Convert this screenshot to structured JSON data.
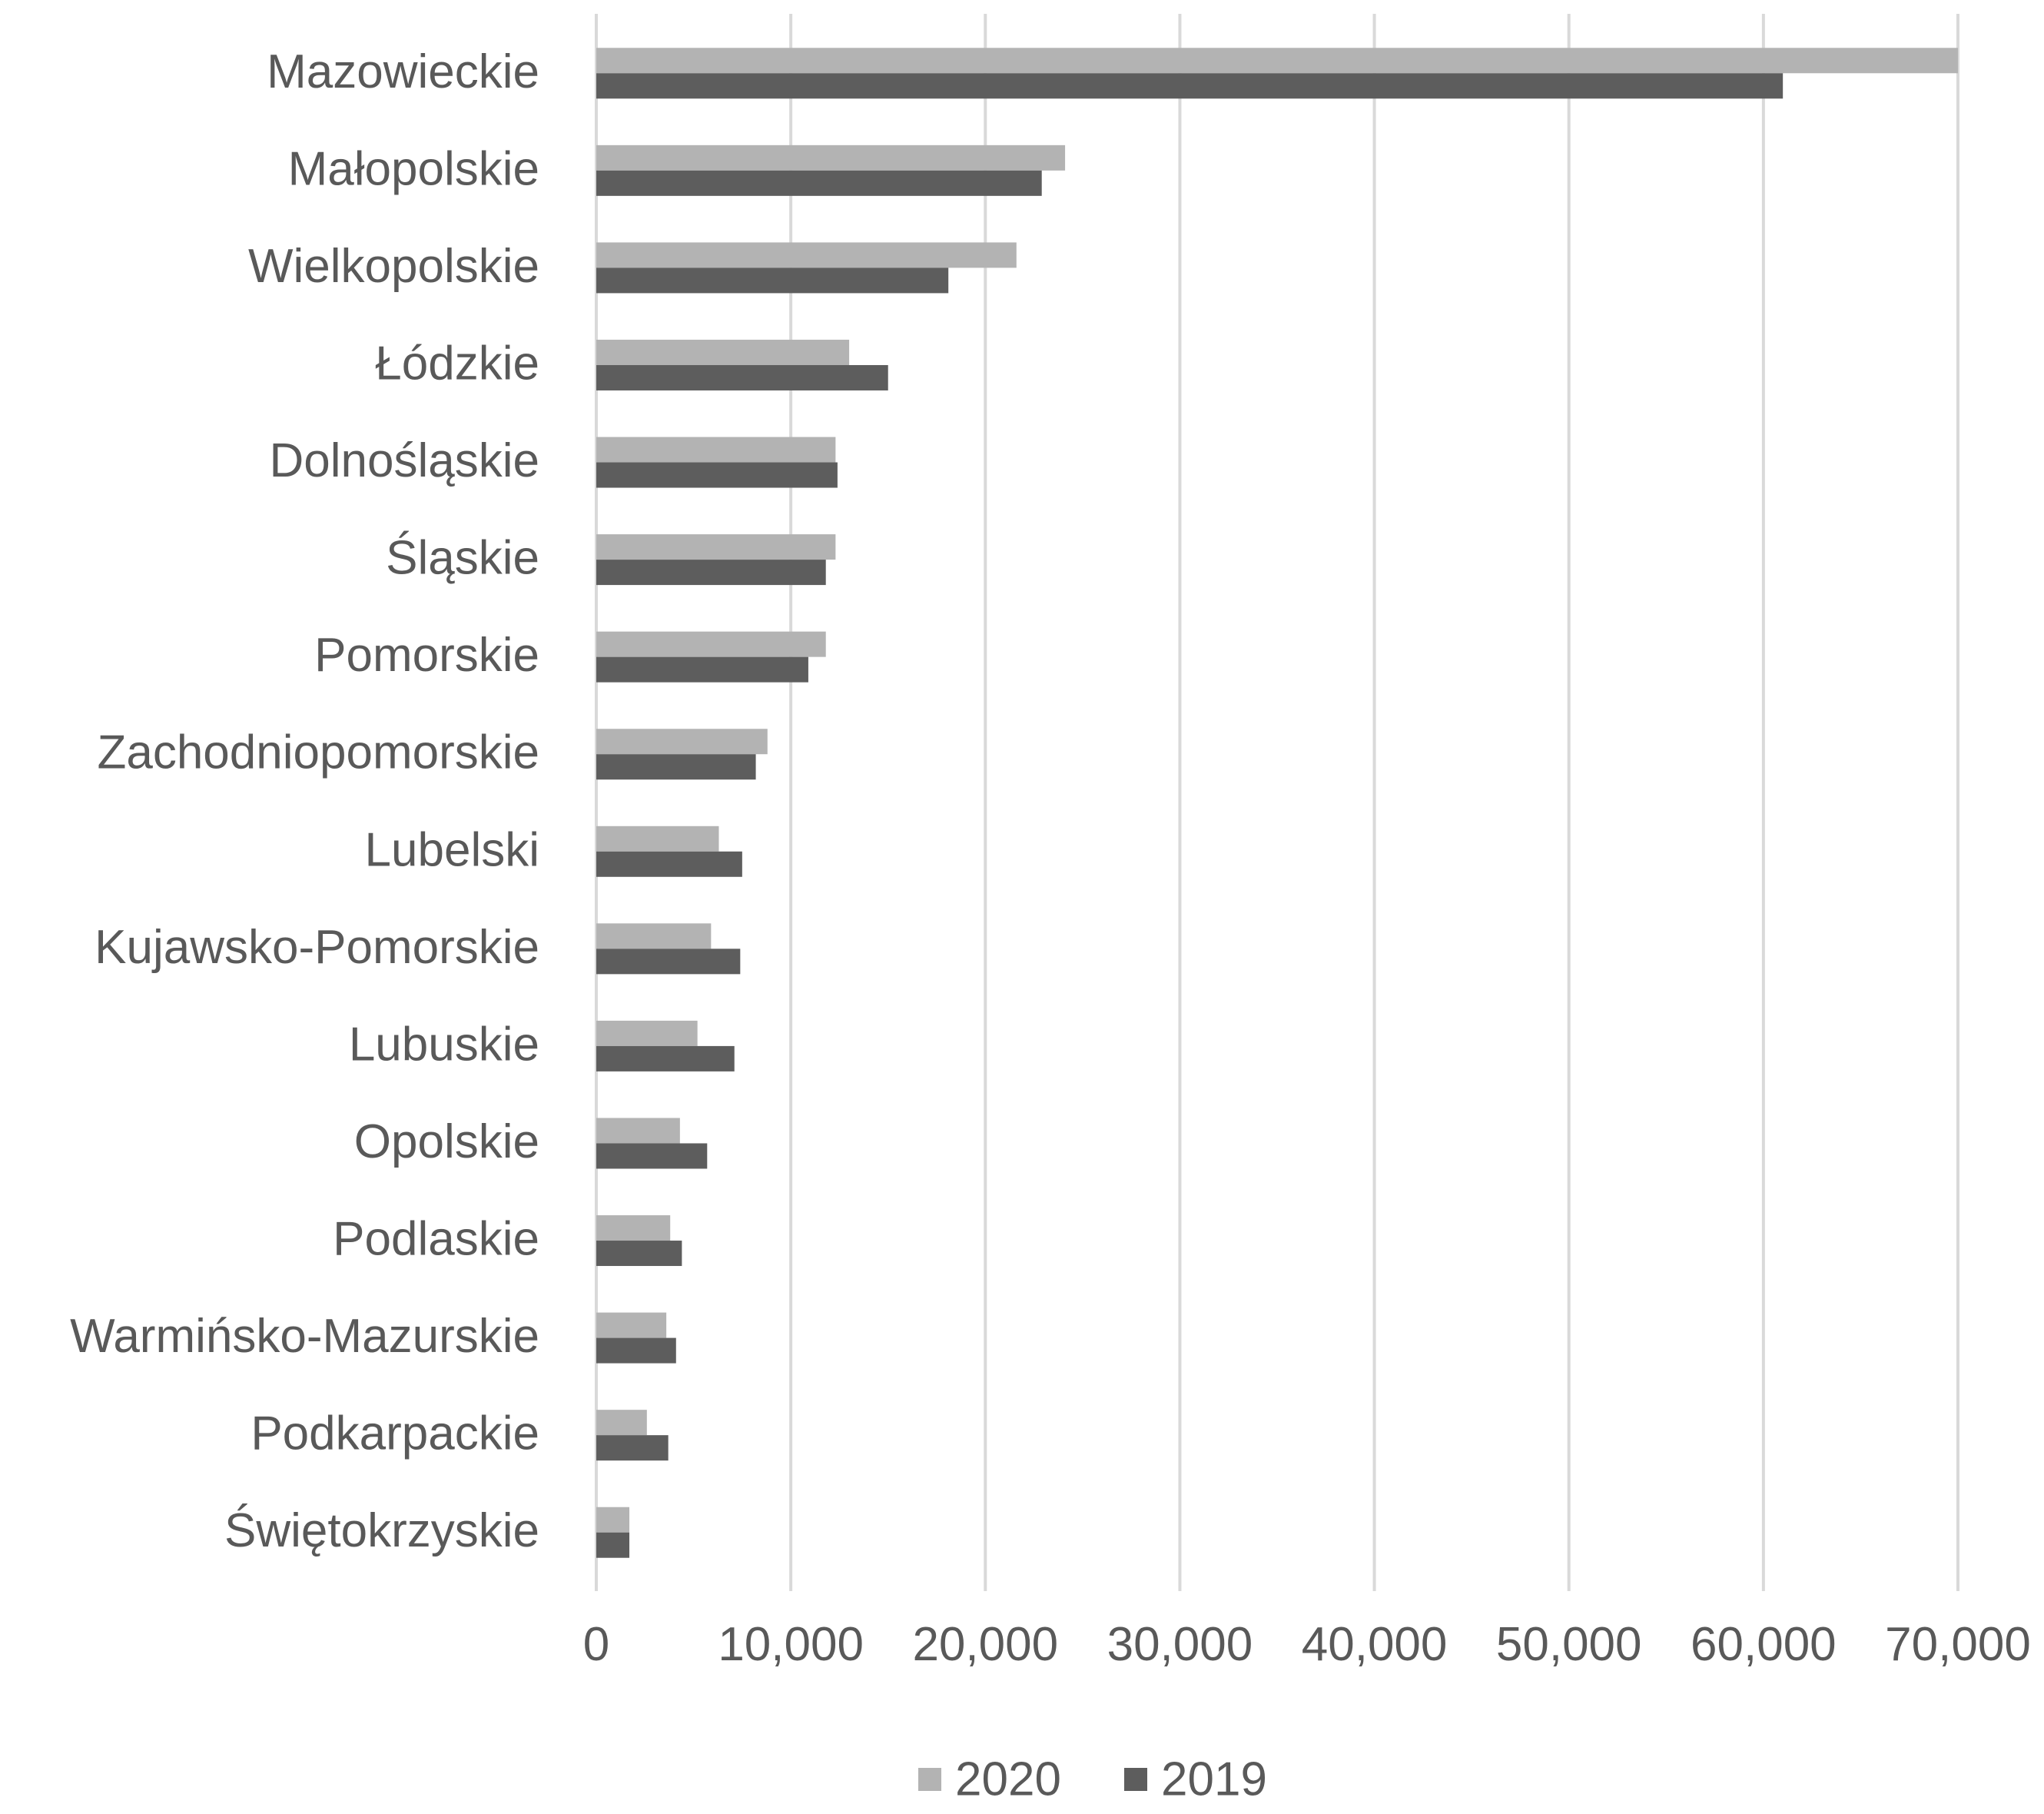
{
  "chart_data": {
    "type": "bar",
    "orientation": "horizontal",
    "categories": [
      "Mazowieckie",
      "Małopolskie",
      "Wielkopolskie",
      "Łódzkie",
      "Dolnośląskie",
      "Śląskie",
      "Pomorskie",
      "Zachodniopomorskie",
      "Lubelski",
      "Kujawsko-Pomorskie",
      "Lubuskie",
      "Opolskie",
      "Podlaskie",
      "Warmińsko-Mazurskie",
      "Podkarpackie",
      "Świętokrzyskie"
    ],
    "series": [
      {
        "name": "2020",
        "color": "#b3b3b3",
        "values": [
          70000,
          24100,
          21600,
          13000,
          12300,
          12300,
          11800,
          8800,
          6300,
          5900,
          5200,
          4300,
          3800,
          3600,
          2600,
          1700
        ]
      },
      {
        "name": "2019",
        "color": "#5d5d5d",
        "values": [
          61000,
          22900,
          18100,
          15000,
          12400,
          11800,
          10900,
          8200,
          7500,
          7400,
          7100,
          5700,
          4400,
          4100,
          3700,
          1700
        ]
      }
    ],
    "xlim": [
      0,
      70000
    ],
    "xticks": [
      "0",
      "10,000",
      "20,000",
      "30,000",
      "40,000",
      "50,000",
      "60,000",
      "70,000"
    ],
    "title": "",
    "xlabel": "",
    "ylabel": "",
    "grid": "vertical",
    "gridColor": "#d9d9d9",
    "legend": "bottom"
  }
}
